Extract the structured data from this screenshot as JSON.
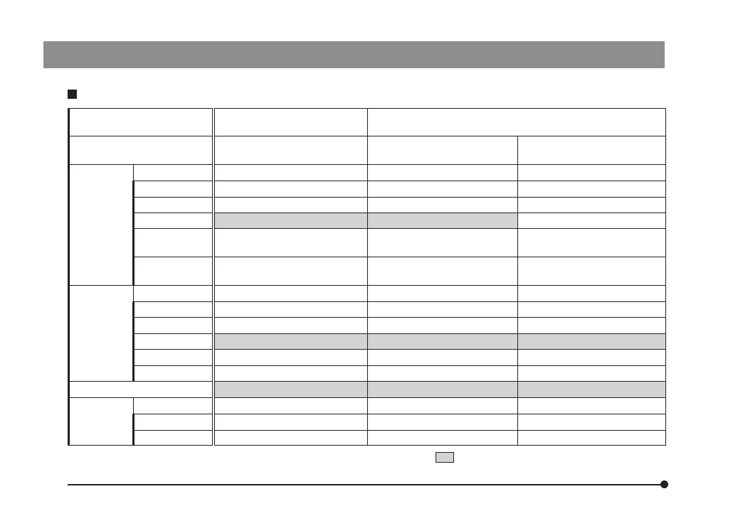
{
  "colors": {
    "header_bar": "#8f8e8e",
    "shaded_cell": "#d3d3d3",
    "lines": "#231f20"
  },
  "table": {
    "groups": [
      {
        "rows": [
          [
            false,
            false,
            false
          ],
          [
            false,
            false,
            false
          ],
          [
            false,
            false,
            false
          ],
          [
            true,
            true,
            false
          ],
          [
            false,
            false,
            false
          ],
          [
            false,
            false,
            false
          ]
        ]
      },
      {
        "rows": [
          [
            false,
            false,
            false
          ],
          [
            false,
            false,
            false
          ],
          [
            false,
            false,
            false
          ],
          [
            true,
            true,
            true
          ],
          [
            false,
            false,
            false
          ],
          [
            false,
            false,
            false
          ]
        ]
      },
      {
        "single": true,
        "rows": [
          [
            true,
            true,
            true
          ]
        ]
      },
      {
        "rows": [
          [
            false,
            false,
            false
          ],
          [
            false,
            false,
            false
          ],
          [
            false,
            false,
            false
          ]
        ]
      }
    ]
  }
}
